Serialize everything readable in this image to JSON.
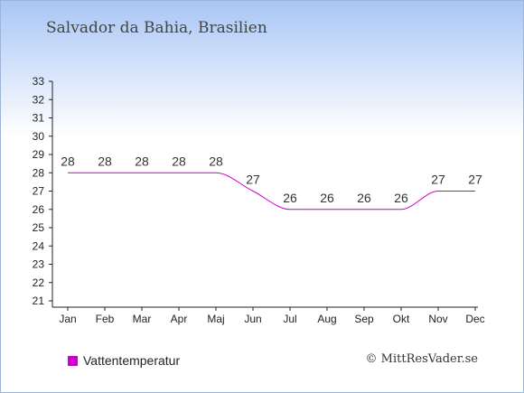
{
  "title": "Salvador da Bahia, Brasilien",
  "legend": {
    "label": "Vattentemperatur",
    "color": "#cc00cc"
  },
  "copyright": "© MittResVader.se",
  "chart_data": {
    "type": "line",
    "categories": [
      "Jan",
      "Feb",
      "Mar",
      "Apr",
      "Maj",
      "Jun",
      "Jul",
      "Aug",
      "Sep",
      "Okt",
      "Nov",
      "Dec"
    ],
    "series": [
      {
        "name": "Vattentemperatur",
        "values": [
          28,
          28,
          28,
          28,
          28,
          27,
          26,
          26,
          26,
          26,
          27,
          27
        ],
        "color": "#cc00cc"
      }
    ],
    "ylim": [
      21,
      33
    ],
    "yticks": [
      21,
      22,
      23,
      24,
      25,
      26,
      27,
      28,
      29,
      30,
      31,
      32,
      33
    ],
    "grid": false,
    "legend_position": "bottom-left"
  }
}
